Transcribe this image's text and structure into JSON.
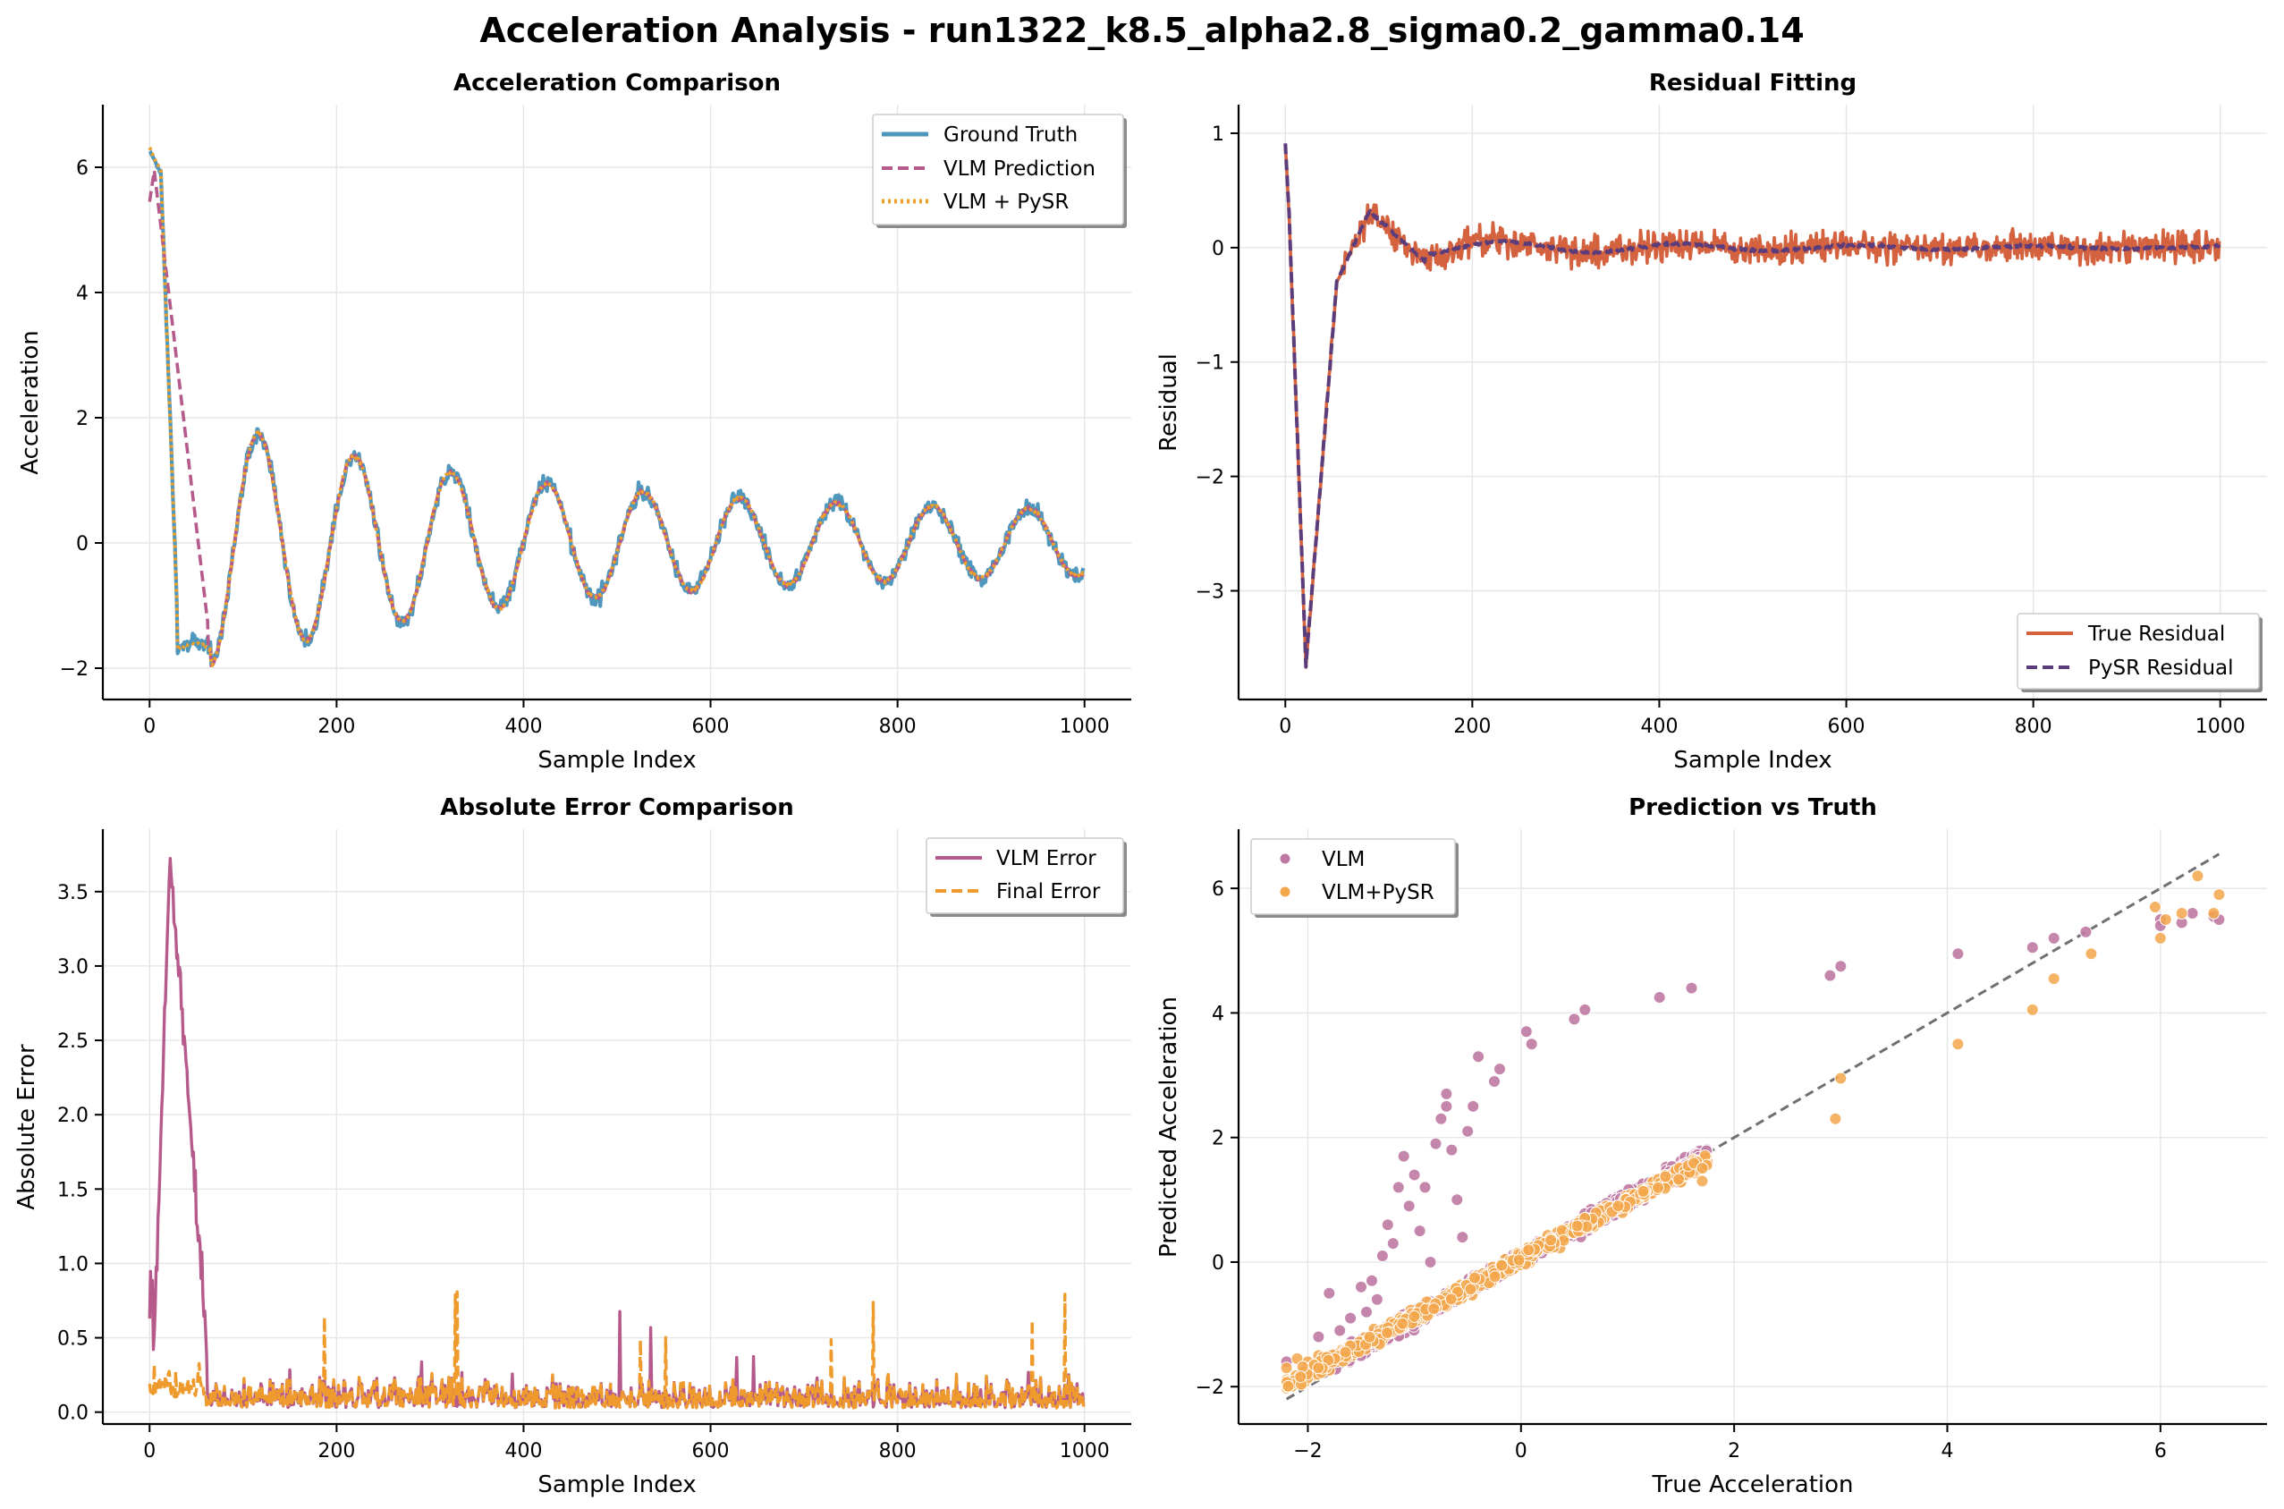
{
  "figure": {
    "title": "Acceleration Analysis - run1322_k8.5_alpha2.8_sigma0.2_gamma0.14"
  },
  "colors": {
    "ground_truth": "#4f97bd",
    "vlm_prediction": "#b55a8a",
    "vlm_pysr": "#efa02a",
    "true_residual": "#d5623f",
    "pysr_residual": "#5c3d7c",
    "vlm_error": "#b55a8a",
    "final_error": "#ee9a2c",
    "scatter_vlm": "#bf79a3",
    "scatter_pysr": "#f3a64a",
    "identity_line": "#707070"
  },
  "chart_data": [
    {
      "id": "acc",
      "type": "line",
      "title": "Acceleration Comparison",
      "xlabel": "Sample Index",
      "ylabel": "Acceleration",
      "xlim": [
        -50,
        1050
      ],
      "ylim": [
        -2.5,
        7.0
      ],
      "xticks": [
        0,
        200,
        400,
        600,
        800,
        1000
      ],
      "yticks": [
        -2,
        0,
        2,
        4,
        6
      ],
      "legend_position": "upper right",
      "signal_model": {
        "n": 1000,
        "start_value": 6.3,
        "trough_index": 65,
        "trough_value": -1.7,
        "oscillation_period": 103,
        "oscillation_peak_1": 1.35,
        "oscillation_peak_late": 0.5,
        "noise_amplitude": 0.2,
        "vlm_linear_decay_end_index": 62
      },
      "series": [
        {
          "name": "Ground Truth",
          "style": "solid",
          "role": "truth"
        },
        {
          "name": "VLM Prediction",
          "style": "dashed",
          "role": "vlm"
        },
        {
          "name": "VLM + PySR",
          "style": "dotted",
          "role": "pysr"
        }
      ]
    },
    {
      "id": "res",
      "type": "line",
      "title": "Residual Fitting",
      "xlabel": "Sample Index",
      "ylabel": "Residual",
      "xlim": [
        -50,
        1050
      ],
      "ylim": [
        -3.95,
        1.25
      ],
      "xticks": [
        0,
        200,
        400,
        600,
        800,
        1000
      ],
      "yticks": [
        -3,
        -2,
        -1,
        0,
        1
      ],
      "legend_position": "lower right",
      "signal_model": {
        "n": 1000,
        "start_value": 1.0,
        "minimum_index": 22,
        "minimum_value": -3.75,
        "noise_amplitude": 0.2
      },
      "series": [
        {
          "name": "True Residual",
          "style": "solid"
        },
        {
          "name": "PySR Residual",
          "style": "dashed"
        }
      ]
    },
    {
      "id": "err",
      "type": "line",
      "title": "Absolute Error Comparison",
      "xlabel": "Sample Index",
      "ylabel": "Absolute Error",
      "xlim": [
        -50,
        1050
      ],
      "ylim": [
        -0.08,
        3.92
      ],
      "xticks": [
        0,
        200,
        400,
        600,
        800,
        1000
      ],
      "yticks": [
        0.0,
        0.5,
        1.0,
        1.5,
        2.0,
        2.5,
        3.0,
        3.5
      ],
      "legend_position": "upper right",
      "signal_model": {
        "n": 1000,
        "vlm_peak_index": 22,
        "vlm_peak_value": 3.75,
        "typical_level": 0.17,
        "spike_max": 0.82
      },
      "series": [
        {
          "name": "VLM Error",
          "style": "solid"
        },
        {
          "name": "Final Error",
          "style": "dashed"
        }
      ]
    },
    {
      "id": "sc",
      "type": "scatter",
      "title": "Prediction vs Truth",
      "xlabel": "True Acceleration",
      "ylabel": "Predicted Acceleration",
      "xlim": [
        -2.65,
        7.0
      ],
      "ylim": [
        -2.6,
        6.95
      ],
      "xticks": [
        -2,
        0,
        2,
        4,
        6
      ],
      "yticks": [
        -2,
        0,
        2,
        4,
        6
      ],
      "identity_line": [
        [
          -2.2,
          -2.2
        ],
        [
          6.55,
          6.55
        ]
      ],
      "legend_position": "upper left",
      "series": [
        {
          "name": "VLM",
          "points": [
            [
              -2.2,
              -1.6
            ],
            [
              -1.9,
              -1.2
            ],
            [
              -1.8,
              -0.5
            ],
            [
              -1.7,
              -1.1
            ],
            [
              -1.6,
              -0.9
            ],
            [
              -1.5,
              -0.4
            ],
            [
              -1.45,
              -0.8
            ],
            [
              -1.4,
              -0.3
            ],
            [
              -1.35,
              -0.6
            ],
            [
              -1.3,
              0.1
            ],
            [
              -1.25,
              0.6
            ],
            [
              -1.2,
              0.3
            ],
            [
              -1.15,
              1.2
            ],
            [
              -1.1,
              1.7
            ],
            [
              -1.05,
              0.9
            ],
            [
              -1.0,
              1.4
            ],
            [
              -0.95,
              0.5
            ],
            [
              -0.9,
              1.2
            ],
            [
              -0.85,
              0.0
            ],
            [
              -0.8,
              1.9
            ],
            [
              -0.75,
              2.3
            ],
            [
              -0.7,
              2.5
            ],
            [
              -0.7,
              2.7
            ],
            [
              -0.65,
              1.8
            ],
            [
              -0.6,
              1.0
            ],
            [
              -0.55,
              0.4
            ],
            [
              -0.5,
              2.1
            ],
            [
              -0.45,
              2.5
            ],
            [
              -0.4,
              3.3
            ],
            [
              -0.25,
              2.9
            ],
            [
              -0.2,
              3.1
            ],
            [
              0.05,
              3.7
            ],
            [
              0.1,
              3.5
            ],
            [
              0.5,
              3.9
            ],
            [
              0.6,
              4.05
            ],
            [
              1.3,
              4.25
            ],
            [
              1.6,
              4.4
            ],
            [
              2.9,
              4.6
            ],
            [
              3.0,
              4.75
            ],
            [
              4.1,
              4.95
            ],
            [
              4.8,
              5.05
            ],
            [
              5.0,
              5.2
            ],
            [
              5.3,
              5.3
            ],
            [
              6.0,
              5.5
            ],
            [
              6.0,
              5.4
            ],
            [
              6.2,
              5.45
            ],
            [
              6.3,
              5.6
            ],
            [
              6.5,
              5.55
            ],
            [
              6.55,
              5.5
            ]
          ],
          "cloud": {
            "count": 520,
            "x_range": [
              -1.8,
              1.75
            ],
            "slope": 0.95,
            "spread": 0.22
          }
        },
        {
          "name": "VLM+PySR",
          "points": [
            [
              -2.2,
              -1.7
            ],
            [
              -2.1,
              -1.55
            ],
            [
              -2.0,
              -1.6
            ],
            [
              -1.9,
              -1.5
            ],
            [
              1.3,
              1.25
            ],
            [
              1.5,
              1.3
            ],
            [
              1.7,
              1.3
            ],
            [
              2.95,
              2.3
            ],
            [
              3.0,
              2.95
            ],
            [
              4.1,
              3.5
            ],
            [
              4.8,
              4.05
            ],
            [
              5.0,
              4.55
            ],
            [
              5.35,
              4.95
            ],
            [
              5.95,
              5.7
            ],
            [
              6.0,
              5.2
            ],
            [
              6.05,
              5.5
            ],
            [
              6.2,
              5.6
            ],
            [
              6.35,
              6.2
            ],
            [
              6.5,
              5.6
            ],
            [
              6.55,
              5.9
            ]
          ],
          "cloud": {
            "count": 620,
            "x_range": [
              -2.2,
              1.75
            ],
            "slope": 0.92,
            "spread": 0.18
          }
        }
      ]
    }
  ]
}
